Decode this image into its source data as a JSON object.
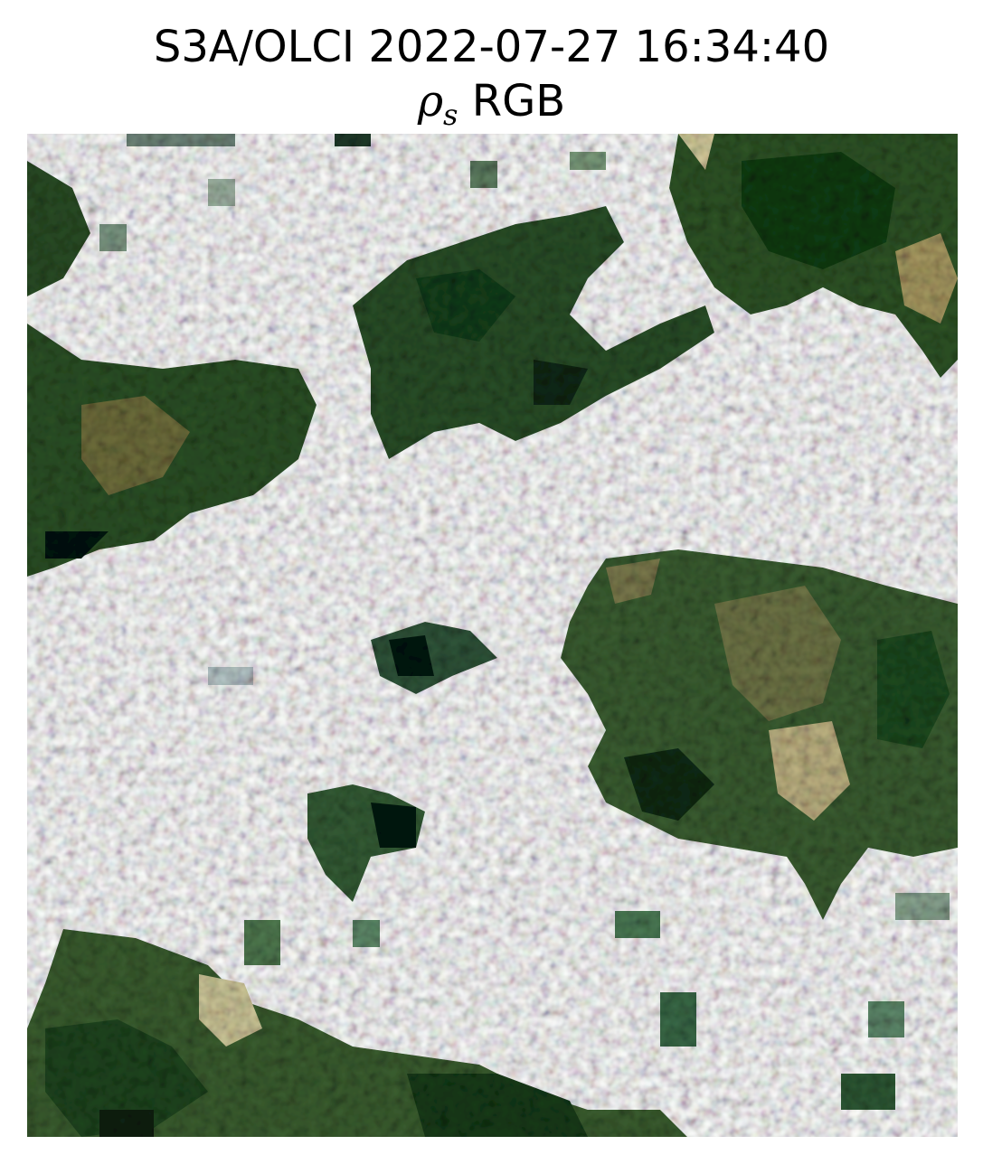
{
  "title": {
    "line1": "S3A/OLCI 2022-07-27 16:34:40",
    "line2_symbol": "ρ",
    "line2_subscript": "s",
    "line2_suffix": " RGB"
  },
  "image": {
    "description_colors": {
      "cloud": "#ffffff",
      "dark_forest": "#0f3a14",
      "forest": "#2e5a28",
      "olive": "#6b7a45",
      "tan": "#c8b98a",
      "shadow": "#06140c",
      "haze": "#d9eadf"
    }
  }
}
